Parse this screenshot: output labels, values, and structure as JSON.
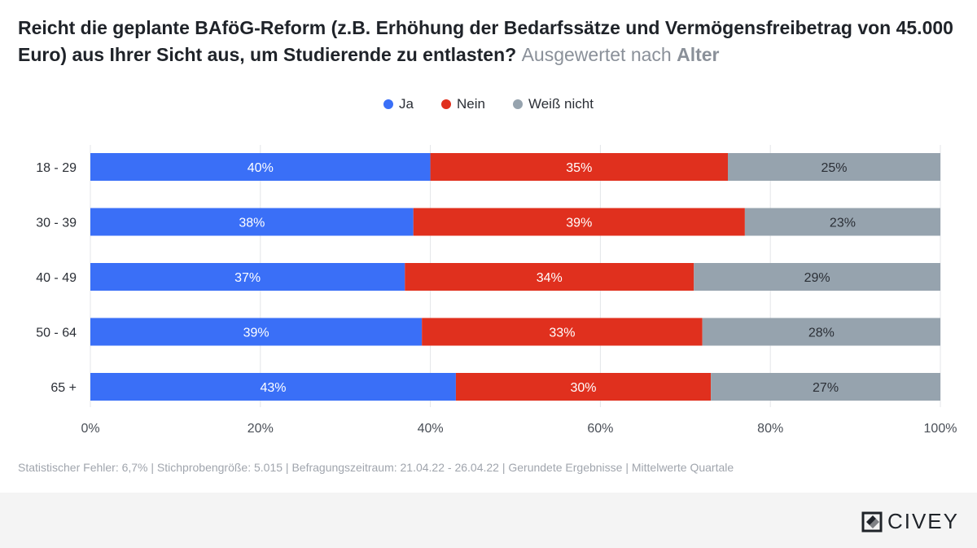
{
  "chart_data": {
    "type": "bar",
    "orientation": "horizontal",
    "stacked": true,
    "title_main": "Reicht die geplante BAföG-Reform (z.B. Erhöhung der Bedarfssätze und Vermögensfreibetrag von 45.000 Euro) aus Ihrer Sicht aus, um Studierende zu entlasten?",
    "title_part1": "Reicht die geplante BAföG-Reform (z.B. Erhöhung der Bedarfssätze und Vermögensfreibetrag von 45.000 Euro) aus Ihrer Sicht aus, um Studierende zu entlasten?",
    "title_part2": "Ausgewertet nach",
    "title_part3": "Alter",
    "categories": [
      "18 - 29",
      "30 - 39",
      "40 - 49",
      "50 - 64",
      "65 +"
    ],
    "series": [
      {
        "name": "Ja",
        "color": "#3a6ff7",
        "values": [
          40,
          38,
          37,
          39,
          43
        ]
      },
      {
        "name": "Nein",
        "color": "#e0301e",
        "values": [
          35,
          39,
          34,
          33,
          30
        ]
      },
      {
        "name": "Weiß nicht",
        "color": "#96a3ae",
        "values": [
          25,
          23,
          29,
          28,
          27
        ]
      }
    ],
    "xlim": [
      0,
      100
    ],
    "xticks": [
      "0%",
      "20%",
      "40%",
      "60%",
      "80%",
      "100%"
    ],
    "legend_position": "top-center",
    "grid": true
  },
  "footer": {
    "note": "Statistischer Fehler: 6,7% | Stichprobengröße: 5.015 | Befragungszeitraum: 21.04.22 - 26.04.22 | Gerundete Ergebnisse | Mittelwerte Quartale"
  },
  "brand": {
    "name": "CIVEY",
    "icon": "civey-logo-icon"
  }
}
